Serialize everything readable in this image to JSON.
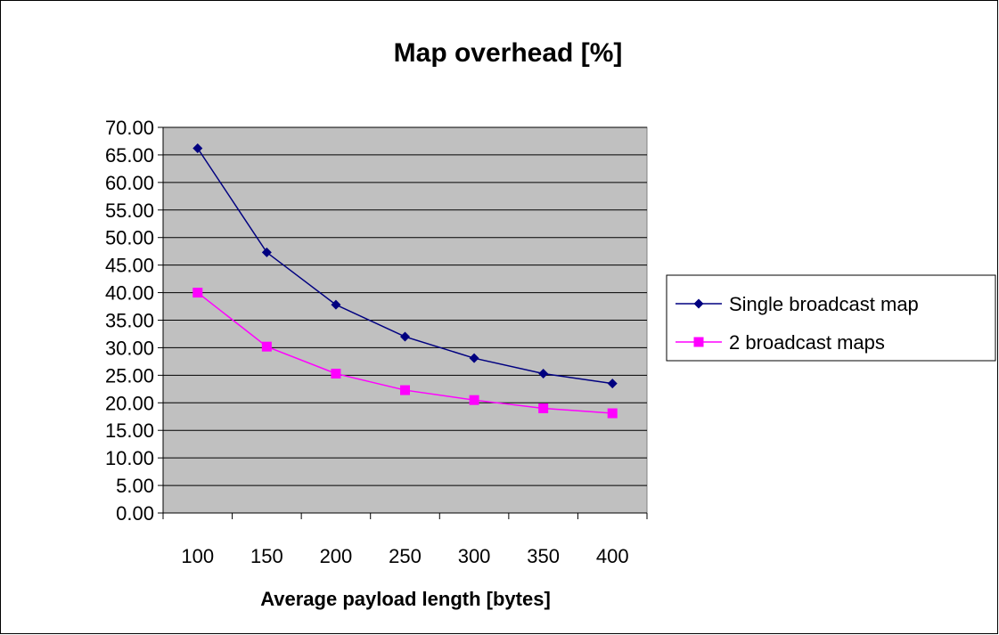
{
  "chart_data": {
    "type": "line",
    "title": "Map overhead  [%]",
    "xlabel": "Average payload length [bytes]",
    "ylabel": "",
    "categories": [
      "100",
      "150",
      "200",
      "250",
      "300",
      "350",
      "400"
    ],
    "yticks": [
      "0.00",
      "5.00",
      "10.00",
      "15.00",
      "20.00",
      "25.00",
      "30.00",
      "35.00",
      "40.00",
      "45.00",
      "50.00",
      "55.00",
      "60.00",
      "65.00",
      "70.00"
    ],
    "ylim": [
      0,
      70
    ],
    "grid": true,
    "plot_background": "#c0c0c0",
    "legend_position": "right",
    "series": [
      {
        "name": "Single broadcast map",
        "color": "#000080",
        "marker": "diamond",
        "values": [
          66.2,
          47.3,
          37.8,
          32.0,
          28.1,
          25.3,
          23.5
        ]
      },
      {
        "name": "2 broadcast maps",
        "color": "#ff00ff",
        "marker": "square",
        "values": [
          40.0,
          30.2,
          25.3,
          22.3,
          20.5,
          19.0,
          18.1
        ]
      }
    ]
  }
}
